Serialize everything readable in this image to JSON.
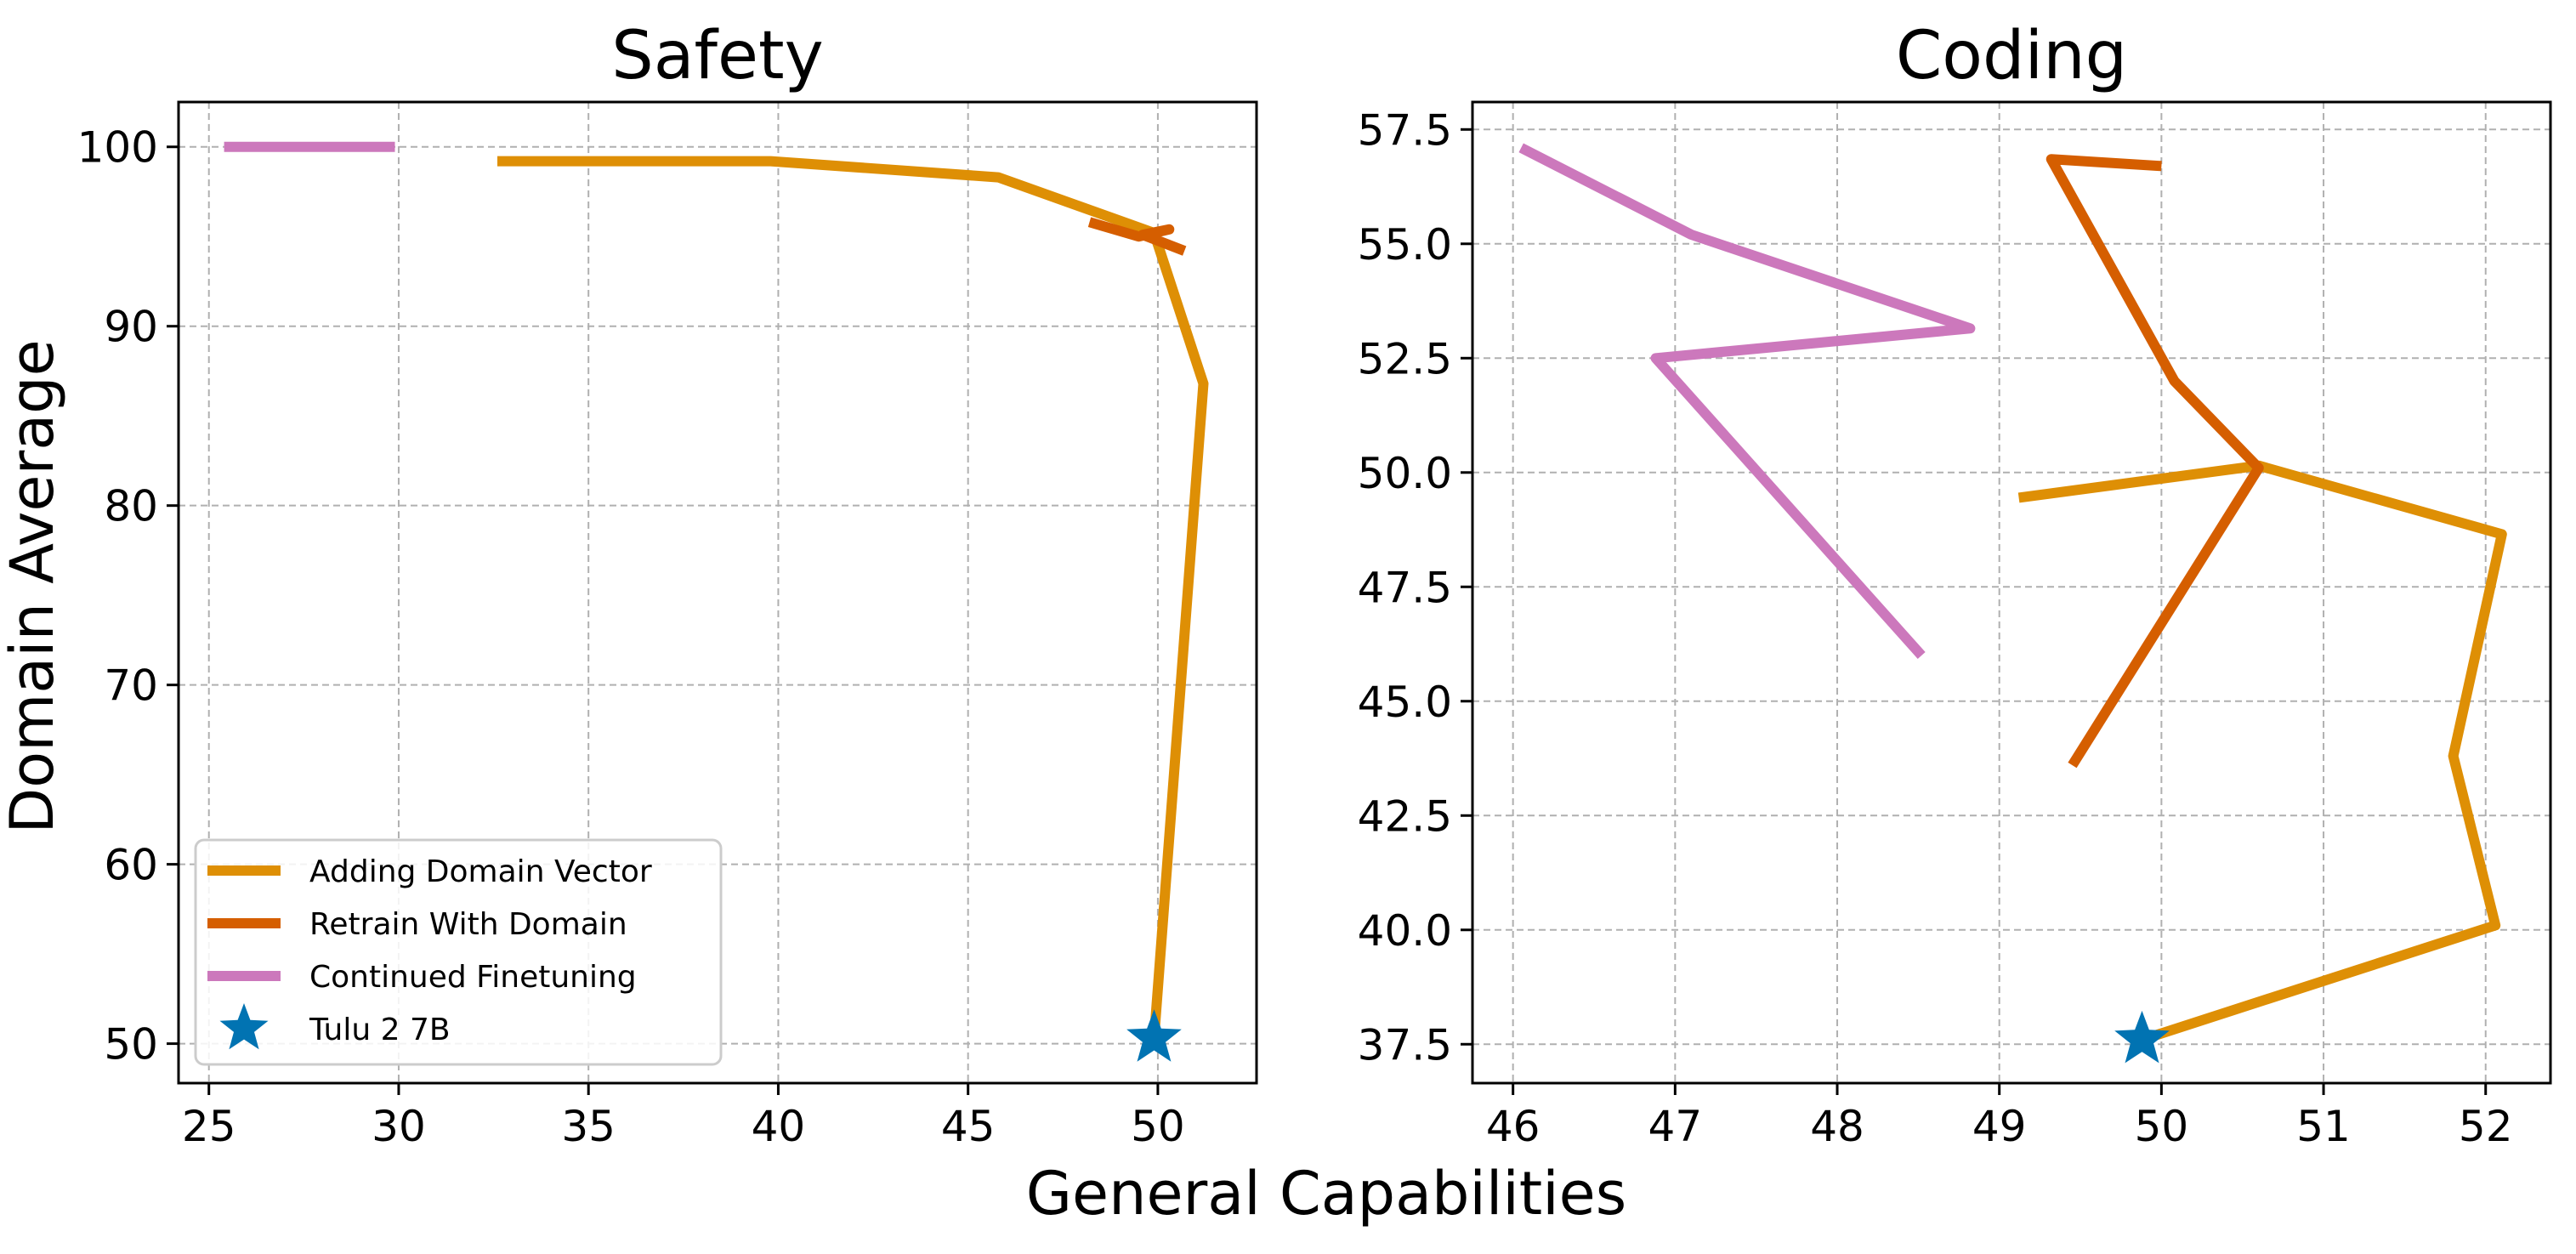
{
  "figure": {
    "xlabel": "General Capabilities",
    "ylabel": "Domain Average"
  },
  "legend": {
    "placement": "lower-left of first panel",
    "entries": [
      {
        "label": "Adding Domain Vector",
        "color": "#de8f05",
        "marker": "line"
      },
      {
        "label": "Retrain With Domain",
        "color": "#d55e00",
        "marker": "line"
      },
      {
        "label": "Continued Finetuning",
        "color": "#cc78bc",
        "marker": "line"
      },
      {
        "label": "Tulu 2 7B",
        "color": "#0173b2",
        "marker": "star"
      }
    ]
  },
  "chart_data": [
    {
      "type": "line",
      "title": "Safety",
      "xlim": [
        24.2,
        52.6
      ],
      "ylim": [
        47.8,
        102.5
      ],
      "xticks": [
        25,
        30,
        35,
        40,
        45,
        50
      ],
      "yticks": [
        50,
        60,
        70,
        80,
        90,
        100
      ],
      "xtick_labels": [
        "25",
        "30",
        "35",
        "40",
        "45",
        "50"
      ],
      "ytick_labels": [
        "50",
        "60",
        "70",
        "80",
        "90",
        "100"
      ],
      "grid": true,
      "series": [
        {
          "name": "Adding Domain Vector",
          "color": "#de8f05",
          "points": [
            [
              32.6,
              99.2
            ],
            [
              39.8,
              99.2
            ],
            [
              45.8,
              98.3
            ],
            [
              49.9,
              95.2
            ],
            [
              51.2,
              86.8
            ],
            [
              49.9,
              50.3
            ]
          ]
        },
        {
          "name": "Retrain With Domain",
          "color": "#d55e00",
          "points": [
            [
              48.2,
              95.8
            ],
            [
              49.5,
              95.0
            ],
            [
              50.3,
              95.4
            ],
            [
              49.6,
              95.1
            ],
            [
              50.7,
              94.2
            ]
          ]
        },
        {
          "name": "Continued Finetuning",
          "color": "#cc78bc",
          "points": [
            [
              25.4,
              100.0
            ],
            [
              28.0,
              100.0
            ],
            [
              29.9,
              100.0
            ]
          ]
        },
        {
          "name": "Tulu 2 7B",
          "color": "#0173b2",
          "marker": "star",
          "points": [
            [
              49.9,
              50.3
            ]
          ]
        }
      ]
    },
    {
      "type": "line",
      "title": "Coding",
      "xlim": [
        45.75,
        52.4
      ],
      "ylim": [
        36.65,
        58.1
      ],
      "xticks": [
        46,
        47,
        48,
        49,
        50,
        51,
        52
      ],
      "yticks": [
        37.5,
        40.0,
        42.5,
        45.0,
        47.5,
        50.0,
        52.5,
        55.0,
        57.5
      ],
      "xtick_labels": [
        "46",
        "47",
        "48",
        "49",
        "50",
        "51",
        "52"
      ],
      "ytick_labels": [
        "37.5",
        "40.0",
        "42.5",
        "45.0",
        "47.5",
        "50.0",
        "52.5",
        "55.0",
        "57.5"
      ],
      "grid": true,
      "series": [
        {
          "name": "Adding Domain Vector",
          "color": "#de8f05",
          "points": [
            [
              49.12,
              49.45
            ],
            [
              50.6,
              50.15
            ],
            [
              52.1,
              48.65
            ],
            [
              51.8,
              43.8
            ],
            [
              52.06,
              40.1
            ],
            [
              49.88,
              37.6
            ]
          ]
        },
        {
          "name": "Retrain With Domain",
          "color": "#d55e00",
          "points": [
            [
              50.0,
              56.7
            ],
            [
              49.32,
              56.85
            ],
            [
              50.08,
              52.0
            ],
            [
              50.6,
              50.1
            ],
            [
              49.45,
              43.6
            ]
          ]
        },
        {
          "name": "Continued Finetuning",
          "color": "#cc78bc",
          "points": [
            [
              46.05,
              57.1
            ],
            [
              47.1,
              55.2
            ],
            [
              48.82,
              53.15
            ],
            [
              46.88,
              52.5
            ],
            [
              48.52,
              46.0
            ]
          ]
        },
        {
          "name": "Tulu 2 7B",
          "color": "#0173b2",
          "marker": "star",
          "points": [
            [
              49.88,
              37.6
            ]
          ]
        }
      ]
    }
  ]
}
